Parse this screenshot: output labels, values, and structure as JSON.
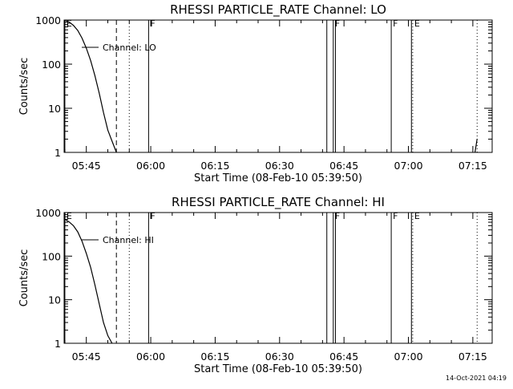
{
  "footer_timestamp": "14-Oct-2021 04:19",
  "chart_data": [
    {
      "type": "line",
      "title": "RHESSI PARTICLE_RATE Channel: LO",
      "xlabel": "Start Time (08-Feb-10 05:39:50)",
      "ylabel": "Counts/sec",
      "y_scale": "log",
      "ylim": [
        1,
        1000
      ],
      "y_ticks": [
        "1",
        "10",
        "100",
        "1000"
      ],
      "xlim_minutes": [
        339.83,
        439.5
      ],
      "x_ticks": [
        "05:45",
        "06:00",
        "06:15",
        "06:30",
        "06:45",
        "07:00",
        "07:15"
      ],
      "legend": "Channel: LO",
      "legend_position": "top-left",
      "series": [
        {
          "name": "Channel: LO",
          "x": [
            "05:40",
            "05:41",
            "05:42",
            "05:43",
            "05:44",
            "05:45",
            "05:46",
            "05:47",
            "05:48",
            "05:49",
            "05:50",
            "05:51",
            "05:52"
          ],
          "y": [
            1000,
            900,
            760,
            580,
            390,
            230,
            120,
            55,
            22,
            8,
            3.2,
            1.8,
            1
          ]
        },
        {
          "name": "",
          "x": [
            "07:15.5",
            "07:16"
          ],
          "y": [
            1,
            2
          ]
        }
      ],
      "marker_lines": [
        {
          "label": "E",
          "time": "05:40",
          "style": "solid"
        },
        {
          "label": "",
          "time": "05:52",
          "style": "dashed"
        },
        {
          "label": "",
          "time": "05:55",
          "style": "dotted"
        },
        {
          "label": "F",
          "time": "05:59.5",
          "style": "solid"
        },
        {
          "label": "",
          "time": "06:41",
          "style": "solid"
        },
        {
          "label": "F",
          "time": "06:42.5",
          "style": "solid"
        },
        {
          "label": "",
          "time": "06:43",
          "style": "solid"
        },
        {
          "label": "F",
          "time": "06:56",
          "style": "solid"
        },
        {
          "label": "",
          "time": "07:00.7",
          "style": "solid"
        },
        {
          "label": "E",
          "time": "07:01",
          "style": "dotted"
        },
        {
          "label": "",
          "time": "07:16",
          "style": "dotted"
        }
      ]
    },
    {
      "type": "line",
      "title": "RHESSI PARTICLE_RATE Channel: HI",
      "xlabel": "Start Time (08-Feb-10 05:39:50)",
      "ylabel": "Counts/sec",
      "y_scale": "log",
      "ylim": [
        1,
        1000
      ],
      "y_ticks": [
        "1",
        "10",
        "100",
        "1000"
      ],
      "xlim_minutes": [
        339.83,
        439.5
      ],
      "x_ticks": [
        "05:45",
        "06:00",
        "06:15",
        "06:30",
        "06:45",
        "07:00",
        "07:15"
      ],
      "legend": "Channel: HI",
      "legend_position": "top-left",
      "series": [
        {
          "name": "Channel: HI",
          "x": [
            "05:40",
            "05:41",
            "05:42",
            "05:43",
            "05:44",
            "05:45",
            "05:46",
            "05:47",
            "05:48",
            "05:49",
            "05:50",
            "05:51"
          ],
          "y": [
            700,
            610,
            500,
            360,
            220,
            115,
            55,
            22,
            8,
            3,
            1.5,
            1
          ]
        }
      ],
      "marker_lines": [
        {
          "label": "E",
          "time": "05:40",
          "style": "solid"
        },
        {
          "label": "",
          "time": "05:52",
          "style": "dashed"
        },
        {
          "label": "",
          "time": "05:55",
          "style": "dotted"
        },
        {
          "label": "F",
          "time": "05:59.5",
          "style": "solid"
        },
        {
          "label": "",
          "time": "06:41",
          "style": "solid"
        },
        {
          "label": "F",
          "time": "06:42.5",
          "style": "solid"
        },
        {
          "label": "",
          "time": "06:43",
          "style": "solid"
        },
        {
          "label": "F",
          "time": "06:56",
          "style": "solid"
        },
        {
          "label": "",
          "time": "07:00.7",
          "style": "solid"
        },
        {
          "label": "E",
          "time": "07:01",
          "style": "dotted"
        },
        {
          "label": "",
          "time": "07:16",
          "style": "dotted"
        }
      ]
    }
  ]
}
